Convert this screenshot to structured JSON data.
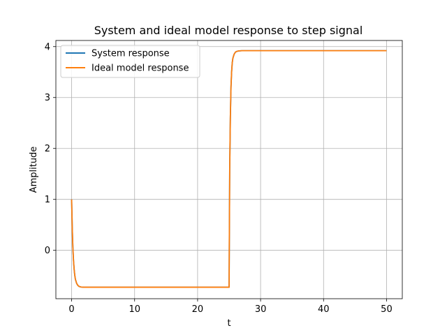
{
  "chart_data": {
    "type": "line",
    "title": "System and ideal model response to step signal",
    "xlabel": "t",
    "ylabel": "Amplitude",
    "xlim": [
      -2.5,
      52.5
    ],
    "ylim": [
      -0.95,
      4.12
    ],
    "xticks": [
      0,
      10,
      20,
      30,
      40,
      50
    ],
    "yticks": [
      0,
      1,
      2,
      3,
      4
    ],
    "grid": true,
    "legend_position": "top-left",
    "series": [
      {
        "name": "System response",
        "color": "#1f77b4",
        "x": [
          0,
          0.1,
          0.2,
          0.3,
          0.4,
          0.5,
          0.6,
          0.8,
          1.0,
          1.2,
          1.5,
          2.0,
          3.0,
          5.0,
          10.0,
          15.0,
          20.0,
          24.9,
          25.0,
          25.1,
          25.2,
          25.3,
          25.4,
          25.5,
          25.6,
          25.8,
          26.0,
          26.2,
          26.5,
          27.0,
          28.0,
          30.0,
          35.0,
          40.0,
          45.0,
          50.0
        ],
        "y": [
          1.0,
          0.43,
          0.05,
          -0.2,
          -0.37,
          -0.49,
          -0.57,
          -0.65,
          -0.69,
          -0.71,
          -0.72,
          -0.725,
          -0.725,
          -0.725,
          -0.725,
          -0.725,
          -0.725,
          -0.725,
          -0.725,
          1.6,
          2.6,
          3.2,
          3.5,
          3.68,
          3.77,
          3.85,
          3.89,
          3.905,
          3.915,
          3.92,
          3.92,
          3.92,
          3.92,
          3.92,
          3.92,
          3.92
        ]
      },
      {
        "name": "Ideal model response",
        "color": "#ff7f0e",
        "x": [
          0,
          0.1,
          0.2,
          0.3,
          0.4,
          0.5,
          0.6,
          0.8,
          1.0,
          1.2,
          1.5,
          2.0,
          3.0,
          5.0,
          10.0,
          15.0,
          20.0,
          24.9,
          25.0,
          25.1,
          25.2,
          25.3,
          25.4,
          25.5,
          25.6,
          25.8,
          26.0,
          26.2,
          26.5,
          27.0,
          28.0,
          30.0,
          35.0,
          40.0,
          45.0,
          50.0
        ],
        "y": [
          1.0,
          0.43,
          0.05,
          -0.2,
          -0.37,
          -0.49,
          -0.57,
          -0.65,
          -0.69,
          -0.71,
          -0.72,
          -0.725,
          -0.725,
          -0.725,
          -0.725,
          -0.725,
          -0.725,
          -0.725,
          -0.725,
          1.6,
          2.6,
          3.2,
          3.5,
          3.68,
          3.77,
          3.85,
          3.89,
          3.905,
          3.915,
          3.92,
          3.92,
          3.92,
          3.92,
          3.92,
          3.92,
          3.92
        ]
      }
    ]
  }
}
